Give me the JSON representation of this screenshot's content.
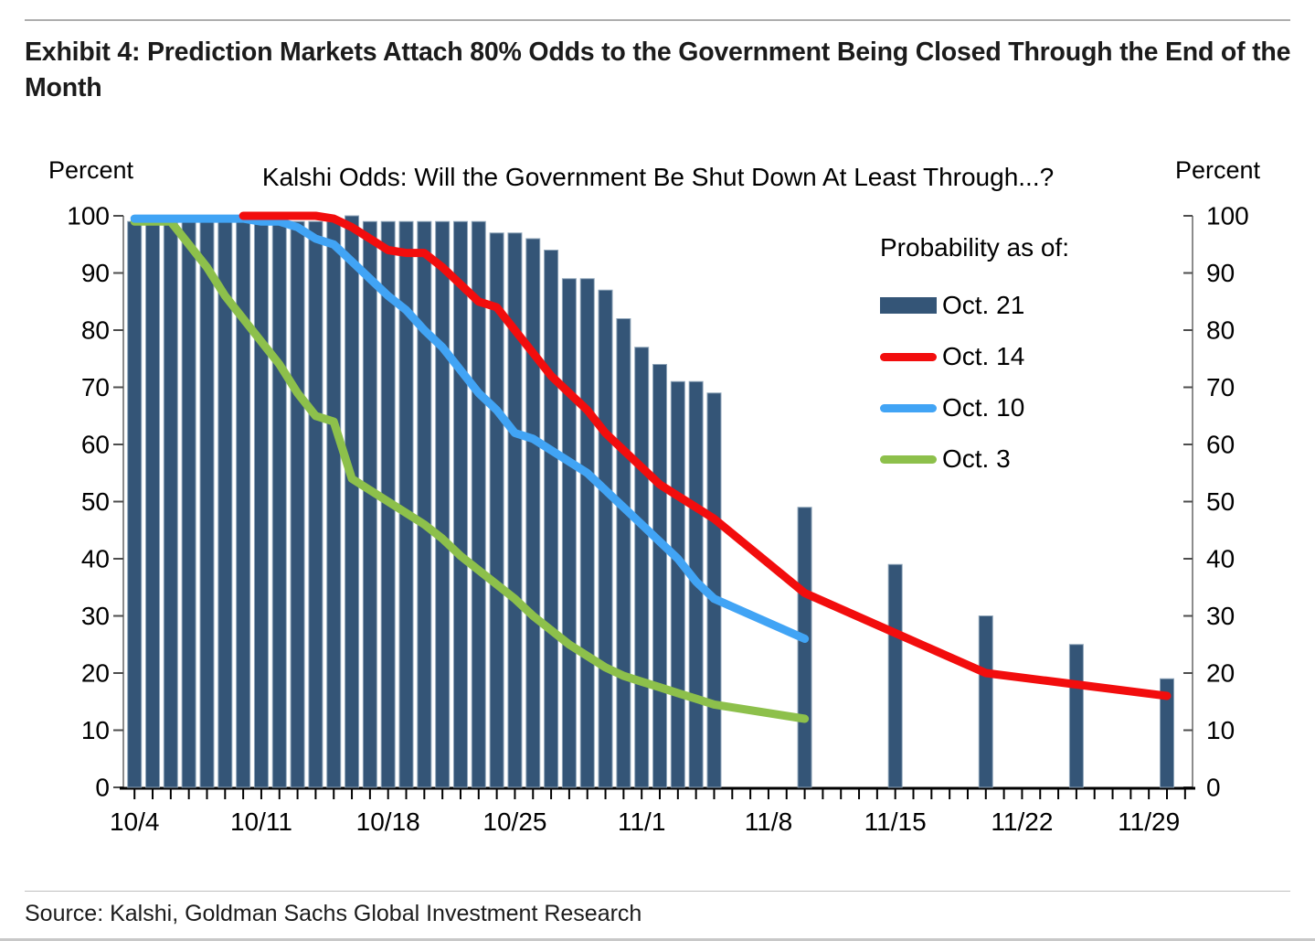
{
  "page": {
    "exhibit_title": "Exhibit 4: Prediction Markets Attach 80% Odds to the Government Being Closed Through the End of the Month",
    "source": "Source: Kalshi, Goldman Sachs Global Investment Research"
  },
  "chart_data": {
    "type": "combo",
    "title": "Kalshi Odds: Will the Government Be Shut Down At Least Through...?",
    "left_axis_label": "Percent",
    "right_axis_label": "Percent",
    "ylim": [
      0,
      100
    ],
    "y_ticks": [
      0,
      10,
      20,
      30,
      40,
      50,
      60,
      70,
      80,
      90,
      100
    ],
    "x_tick_labels": [
      "10/4",
      "10/11",
      "10/18",
      "10/25",
      "11/1",
      "11/8",
      "11/15",
      "11/22",
      "11/29"
    ],
    "grid": false,
    "legend": {
      "title": "Probability as of:",
      "position": "upper right",
      "items": [
        {
          "label": "Oct. 21",
          "color": "#345577",
          "swatch": "bar"
        },
        {
          "label": "Oct. 14",
          "color": "#F20D0D",
          "swatch": "line"
        },
        {
          "label": "Oct. 10",
          "color": "#41A4F5",
          "swatch": "line"
        },
        {
          "label": "Oct. 3",
          "color": "#8DC04B",
          "swatch": "line"
        }
      ]
    },
    "series": [
      {
        "name": "Oct. 21",
        "type": "bar",
        "color": "#345577",
        "points": [
          [
            "10/4",
            99
          ],
          [
            "10/5",
            99
          ],
          [
            "10/6",
            99
          ],
          [
            "10/7",
            99
          ],
          [
            "10/8",
            99
          ],
          [
            "10/9",
            99
          ],
          [
            "10/10",
            99
          ],
          [
            "10/11",
            99
          ],
          [
            "10/12",
            99
          ],
          [
            "10/13",
            99
          ],
          [
            "10/14",
            99
          ],
          [
            "10/15",
            99
          ],
          [
            "10/16",
            100
          ],
          [
            "10/17",
            99
          ],
          [
            "10/18",
            99
          ],
          [
            "10/19",
            99
          ],
          [
            "10/20",
            99
          ],
          [
            "10/21",
            99
          ],
          [
            "10/22",
            99
          ],
          [
            "10/23",
            99
          ],
          [
            "10/24",
            97
          ],
          [
            "10/25",
            97
          ],
          [
            "10/26",
            96
          ],
          [
            "10/27",
            94
          ],
          [
            "10/28",
            89
          ],
          [
            "10/29",
            89
          ],
          [
            "10/30",
            87
          ],
          [
            "10/31",
            82
          ],
          [
            "11/1",
            77
          ],
          [
            "11/2",
            74
          ],
          [
            "11/3",
            71
          ],
          [
            "11/4",
            71
          ],
          [
            "11/5",
            69
          ],
          [
            "11/10",
            49
          ],
          [
            "11/15",
            39
          ],
          [
            "11/20",
            30
          ],
          [
            "11/25",
            25
          ],
          [
            "11/30",
            19
          ]
        ]
      },
      {
        "name": "Oct. 3",
        "type": "line",
        "color": "#8DC04B",
        "points": [
          [
            "10/4",
            99
          ],
          [
            "10/5",
            99
          ],
          [
            "10/6",
            99
          ],
          [
            "10/7",
            95
          ],
          [
            "10/8",
            91
          ],
          [
            "10/9",
            86
          ],
          [
            "10/10",
            82
          ],
          [
            "10/11",
            78
          ],
          [
            "10/12",
            74
          ],
          [
            "10/13",
            69
          ],
          [
            "10/14",
            65
          ],
          [
            "10/15",
            64
          ],
          [
            "10/16",
            54
          ],
          [
            "10/17",
            52
          ],
          [
            "10/18",
            50
          ],
          [
            "10/19",
            48
          ],
          [
            "10/20",
            46
          ],
          [
            "10/21",
            43.5
          ],
          [
            "10/22",
            40.5
          ],
          [
            "10/23",
            38
          ],
          [
            "10/24",
            35.5
          ],
          [
            "10/25",
            33
          ],
          [
            "10/26",
            30
          ],
          [
            "10/27",
            27.5
          ],
          [
            "10/28",
            25
          ],
          [
            "10/29",
            23
          ],
          [
            "10/30",
            21
          ],
          [
            "10/31",
            19.5
          ],
          [
            "11/1",
            18.5
          ],
          [
            "11/2",
            17.5
          ],
          [
            "11/3",
            16.5
          ],
          [
            "11/4",
            15.5
          ],
          [
            "11/5",
            14.5
          ],
          [
            "11/10",
            12
          ]
        ]
      },
      {
        "name": "Oct. 10",
        "type": "line",
        "color": "#41A4F5",
        "points": [
          [
            "10/4",
            99.5
          ],
          [
            "10/10",
            99.5
          ],
          [
            "10/11",
            99
          ],
          [
            "10/12",
            99
          ],
          [
            "10/13",
            98
          ],
          [
            "10/14",
            96
          ],
          [
            "10/15",
            95
          ],
          [
            "10/16",
            92
          ],
          [
            "10/17",
            89
          ],
          [
            "10/18",
            86
          ],
          [
            "10/19",
            83.5
          ],
          [
            "10/20",
            80
          ],
          [
            "10/21",
            77
          ],
          [
            "10/22",
            73
          ],
          [
            "10/23",
            69
          ],
          [
            "10/24",
            66
          ],
          [
            "10/25",
            62
          ],
          [
            "10/26",
            61
          ],
          [
            "10/27",
            59
          ],
          [
            "10/28",
            57
          ],
          [
            "10/29",
            55
          ],
          [
            "10/30",
            52
          ],
          [
            "10/31",
            49
          ],
          [
            "11/1",
            46
          ],
          [
            "11/2",
            43
          ],
          [
            "11/3",
            40
          ],
          [
            "11/4",
            36
          ],
          [
            "11/5",
            33
          ],
          [
            "11/10",
            26
          ]
        ]
      },
      {
        "name": "Oct. 14",
        "type": "line",
        "color": "#F20D0D",
        "points": [
          [
            "10/10",
            100
          ],
          [
            "10/14",
            100
          ],
          [
            "10/15",
            99.5
          ],
          [
            "10/16",
            98
          ],
          [
            "10/17",
            96
          ],
          [
            "10/18",
            94
          ],
          [
            "10/19",
            93.5
          ],
          [
            "10/20",
            93.5
          ],
          [
            "10/21",
            91
          ],
          [
            "10/22",
            88
          ],
          [
            "10/23",
            85
          ],
          [
            "10/24",
            84
          ],
          [
            "10/25",
            80
          ],
          [
            "10/26",
            76
          ],
          [
            "10/27",
            72
          ],
          [
            "10/28",
            69
          ],
          [
            "10/29",
            66
          ],
          [
            "10/30",
            62
          ],
          [
            "10/31",
            59
          ],
          [
            "11/1",
            56
          ],
          [
            "11/2",
            53
          ],
          [
            "11/3",
            51
          ],
          [
            "11/4",
            49
          ],
          [
            "11/5",
            47
          ],
          [
            "11/10",
            34
          ],
          [
            "11/15",
            27
          ],
          [
            "11/20",
            20
          ],
          [
            "11/25",
            18
          ],
          [
            "11/30",
            16
          ]
        ]
      }
    ]
  }
}
